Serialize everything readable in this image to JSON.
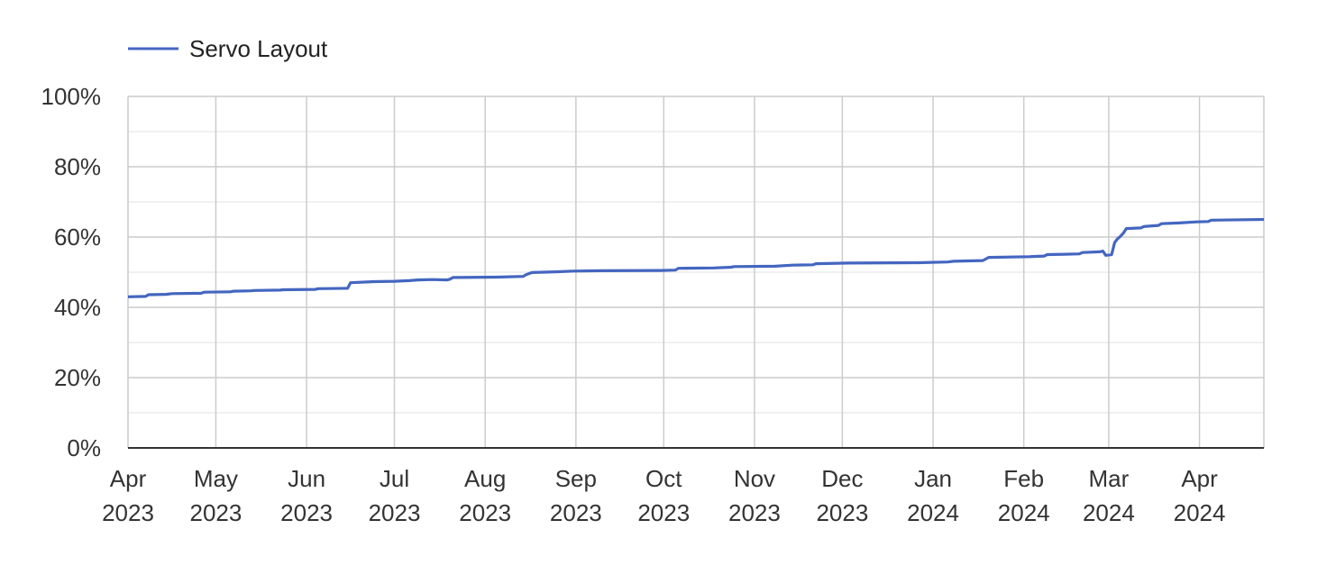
{
  "chart_data": {
    "type": "line",
    "title": "",
    "xlabel": "",
    "ylabel": "",
    "ylim": [
      0,
      100
    ],
    "y_unit": "%",
    "xlim": [
      "2023-04-01",
      "2024-04-23"
    ],
    "grid": true,
    "legend_position": "top-left",
    "x_ticks": [
      {
        "date": "2023-04-01",
        "month": "Apr",
        "year": "2023"
      },
      {
        "date": "2023-05-01",
        "month": "May",
        "year": "2023"
      },
      {
        "date": "2023-06-01",
        "month": "Jun",
        "year": "2023"
      },
      {
        "date": "2023-07-01",
        "month": "Jul",
        "year": "2023"
      },
      {
        "date": "2023-08-01",
        "month": "Aug",
        "year": "2023"
      },
      {
        "date": "2023-09-01",
        "month": "Sep",
        "year": "2023"
      },
      {
        "date": "2023-10-01",
        "month": "Oct",
        "year": "2023"
      },
      {
        "date": "2023-11-01",
        "month": "Nov",
        "year": "2023"
      },
      {
        "date": "2023-12-01",
        "month": "Dec",
        "year": "2023"
      },
      {
        "date": "2024-01-01",
        "month": "Jan",
        "year": "2024"
      },
      {
        "date": "2024-02-01",
        "month": "Feb",
        "year": "2024"
      },
      {
        "date": "2024-03-01",
        "month": "Mar",
        "year": "2024"
      },
      {
        "date": "2024-04-01",
        "month": "Apr",
        "year": "2024"
      }
    ],
    "y_ticks": [
      {
        "value": 0,
        "label": "0%"
      },
      {
        "value": 20,
        "label": "20%"
      },
      {
        "value": 40,
        "label": "40%"
      },
      {
        "value": 60,
        "label": "60%"
      },
      {
        "value": 80,
        "label": "80%"
      },
      {
        "value": 100,
        "label": "100%"
      }
    ],
    "series": [
      {
        "name": "Servo Layout",
        "color": "#4466c0",
        "points": [
          [
            "2023-04-01",
            43.0
          ],
          [
            "2023-04-07",
            43.1
          ],
          [
            "2023-04-08",
            43.6
          ],
          [
            "2023-04-14",
            43.7
          ],
          [
            "2023-04-16",
            43.9
          ],
          [
            "2023-04-26",
            44.0
          ],
          [
            "2023-04-27",
            44.3
          ],
          [
            "2023-05-06",
            44.4
          ],
          [
            "2023-05-07",
            44.6
          ],
          [
            "2023-05-13",
            44.7
          ],
          [
            "2023-05-14",
            44.8
          ],
          [
            "2023-05-23",
            44.9
          ],
          [
            "2023-05-24",
            45.0
          ],
          [
            "2023-06-04",
            45.1
          ],
          [
            "2023-06-05",
            45.3
          ],
          [
            "2023-06-15",
            45.4
          ],
          [
            "2023-06-16",
            47.0
          ],
          [
            "2023-06-24",
            47.3
          ],
          [
            "2023-07-01",
            47.4
          ],
          [
            "2023-07-06",
            47.6
          ],
          [
            "2023-07-09",
            47.8
          ],
          [
            "2023-07-14",
            47.9
          ],
          [
            "2023-07-19",
            47.8
          ],
          [
            "2023-07-20",
            48.0
          ],
          [
            "2023-07-21",
            48.5
          ],
          [
            "2023-08-05",
            48.6
          ],
          [
            "2023-08-14",
            48.8
          ],
          [
            "2023-08-15",
            49.3
          ],
          [
            "2023-08-17",
            49.9
          ],
          [
            "2023-08-25",
            50.1
          ],
          [
            "2023-08-31",
            50.3
          ],
          [
            "2023-09-10",
            50.4
          ],
          [
            "2023-09-30",
            50.5
          ],
          [
            "2023-10-05",
            50.6
          ],
          [
            "2023-10-06",
            51.1
          ],
          [
            "2023-10-18",
            51.2
          ],
          [
            "2023-10-24",
            51.4
          ],
          [
            "2023-10-25",
            51.6
          ],
          [
            "2023-11-08",
            51.7
          ],
          [
            "2023-11-14",
            52.0
          ],
          [
            "2023-11-21",
            52.1
          ],
          [
            "2023-11-22",
            52.4
          ],
          [
            "2023-12-03",
            52.6
          ],
          [
            "2023-12-27",
            52.7
          ],
          [
            "2024-01-06",
            52.9
          ],
          [
            "2024-01-08",
            53.1
          ],
          [
            "2024-01-18",
            53.3
          ],
          [
            "2024-01-20",
            54.2
          ],
          [
            "2024-02-03",
            54.4
          ],
          [
            "2024-02-08",
            54.6
          ],
          [
            "2024-02-09",
            55.0
          ],
          [
            "2024-02-15",
            55.1
          ],
          [
            "2024-02-20",
            55.2
          ],
          [
            "2024-02-21",
            55.6
          ],
          [
            "2024-02-27",
            55.8
          ],
          [
            "2024-02-28",
            56.0
          ],
          [
            "2024-02-29",
            54.8
          ],
          [
            "2024-03-02",
            55.0
          ],
          [
            "2024-03-03",
            58.4
          ],
          [
            "2024-03-04",
            59.5
          ],
          [
            "2024-03-05",
            60.2
          ],
          [
            "2024-03-06",
            61.1
          ],
          [
            "2024-03-07",
            62.4
          ],
          [
            "2024-03-12",
            62.6
          ],
          [
            "2024-03-13",
            63.0
          ],
          [
            "2024-03-18",
            63.3
          ],
          [
            "2024-03-19",
            63.8
          ],
          [
            "2024-03-25",
            64.0
          ],
          [
            "2024-03-31",
            64.3
          ],
          [
            "2024-04-04",
            64.4
          ],
          [
            "2024-04-05",
            64.8
          ],
          [
            "2024-04-23",
            65.0
          ]
        ]
      }
    ]
  }
}
